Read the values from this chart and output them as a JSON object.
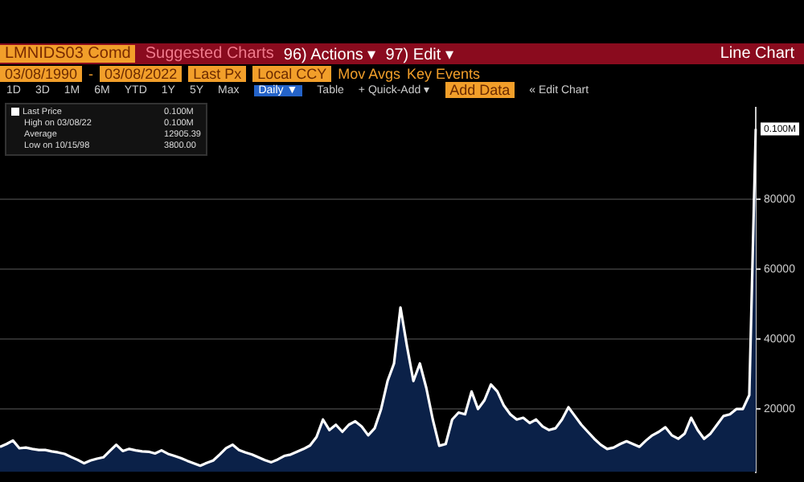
{
  "chart_data": {
    "type": "area",
    "title": "LMNIDS03 Comd",
    "subtitle": "Line Chart",
    "categories": [
      null,
      null,
      null,
      null,
      null,
      null,
      null,
      null,
      null,
      null,
      null,
      null,
      null,
      null,
      null,
      null,
      null,
      null,
      null,
      null,
      null,
      null,
      null,
      null,
      null,
      null,
      null,
      null,
      null,
      null,
      null,
      null,
      null,
      null,
      null,
      null,
      null,
      null,
      null,
      null,
      null,
      null,
      null,
      null,
      null,
      null,
      null,
      null,
      null,
      null,
      null,
      null,
      null,
      null,
      null,
      null,
      null,
      null,
      null,
      null,
      null,
      null,
      null,
      null,
      null,
      null,
      null,
      null,
      null,
      null,
      null,
      null,
      null,
      null,
      null,
      null,
      null,
      null,
      null,
      null,
      null,
      null,
      null,
      null,
      null,
      null,
      null,
      null,
      null,
      null,
      null,
      null,
      null,
      null,
      null,
      null,
      null,
      null,
      null,
      null,
      null,
      null,
      null,
      null,
      null,
      null,
      null,
      null,
      null,
      null,
      null,
      null,
      null,
      null,
      null,
      null,
      null,
      null
    ],
    "series": [
      {
        "name": "Last Price",
        "color": "#ffffff",
        "values": [
          9200,
          10000,
          11000,
          8800,
          9000,
          8600,
          8300,
          8300,
          7900,
          7600,
          7200,
          6300,
          5500,
          4500,
          5300,
          5800,
          6200,
          8000,
          9800,
          8000,
          8600,
          8200,
          7900,
          7800,
          7300,
          8200,
          7200,
          6600,
          6000,
          5200,
          4500,
          3800,
          4600,
          5300,
          7000,
          8800,
          9800,
          8300,
          7600,
          7000,
          6200,
          5400,
          4800,
          5600,
          6600,
          7000,
          7800,
          8600,
          9600,
          12000,
          17000,
          14000,
          15500,
          13500,
          15500,
          16500,
          15000,
          12500,
          14500,
          20000,
          28000,
          33000,
          49000,
          38000,
          28000,
          33000,
          26000,
          17000,
          9500,
          10000,
          17000,
          19000,
          18500,
          25000,
          20000,
          22500,
          27000,
          25000,
          21000,
          18500,
          17000,
          17500,
          16000,
          17000,
          15000,
          14000,
          14500,
          17000,
          20500,
          18000,
          15500,
          13500,
          11500,
          9800,
          8600,
          9000,
          10000,
          10800,
          10000,
          9200,
          11000,
          12500,
          13500,
          14800,
          12500,
          11500,
          13000,
          17500,
          14000,
          11500,
          13000,
          15500,
          18000,
          18500,
          20000,
          20000,
          24000,
          100000
        ],
        "value_labels": [
          null,
          null,
          null,
          null,
          null,
          null,
          null,
          null,
          null,
          null,
          null,
          null,
          null,
          null,
          null,
          null,
          null,
          null,
          null,
          null,
          null,
          null,
          null,
          null,
          null,
          null,
          null,
          null,
          null,
          null,
          null,
          null,
          null,
          null,
          null,
          null,
          null,
          null,
          null,
          null,
          null,
          null,
          null,
          null,
          null,
          null,
          null,
          null,
          null,
          null,
          null,
          null,
          null,
          null,
          null,
          null,
          null,
          null,
          null,
          null,
          null,
          null,
          null,
          null,
          null,
          null,
          null,
          null,
          null,
          null,
          null,
          null,
          null,
          null,
          null,
          null,
          null,
          null,
          null,
          null,
          null,
          null,
          null,
          null,
          null,
          null,
          null,
          null,
          null,
          null,
          null,
          null,
          null,
          null,
          null,
          null,
          null,
          null,
          null,
          null,
          null,
          null,
          null,
          null,
          null,
          null,
          null,
          null,
          null,
          null,
          null,
          null,
          null,
          null,
          null,
          null,
          null,
          "0.100M"
        ]
      }
    ],
    "ylim": [
      2000,
      106000
    ],
    "yticks": [
      20000,
      40000,
      60000,
      80000
    ],
    "tick_labels": "y",
    "grid": "y",
    "legend": "top left",
    "annotations": [
      "Suggested Charts",
      "96) Actions ▾",
      "97) Edit ▾",
      "03/08/1990",
      "-",
      "03/08/2022",
      "Last Px",
      "Local CCY",
      "Mov Avgs",
      "Key Events",
      "1D",
      "3D",
      "1M",
      "6M",
      "YTD",
      "1Y",
      "5Y",
      "Max",
      "Daily ▼",
      "Table",
      "+ Quick-Add ▾",
      "Add Data",
      "« Edit Chart",
      "0.100M",
      "High on 03/08/22",
      "0.100M",
      "Average",
      "12905.39",
      "Low on 10/15/98",
      "3800.00"
    ]
  }
}
